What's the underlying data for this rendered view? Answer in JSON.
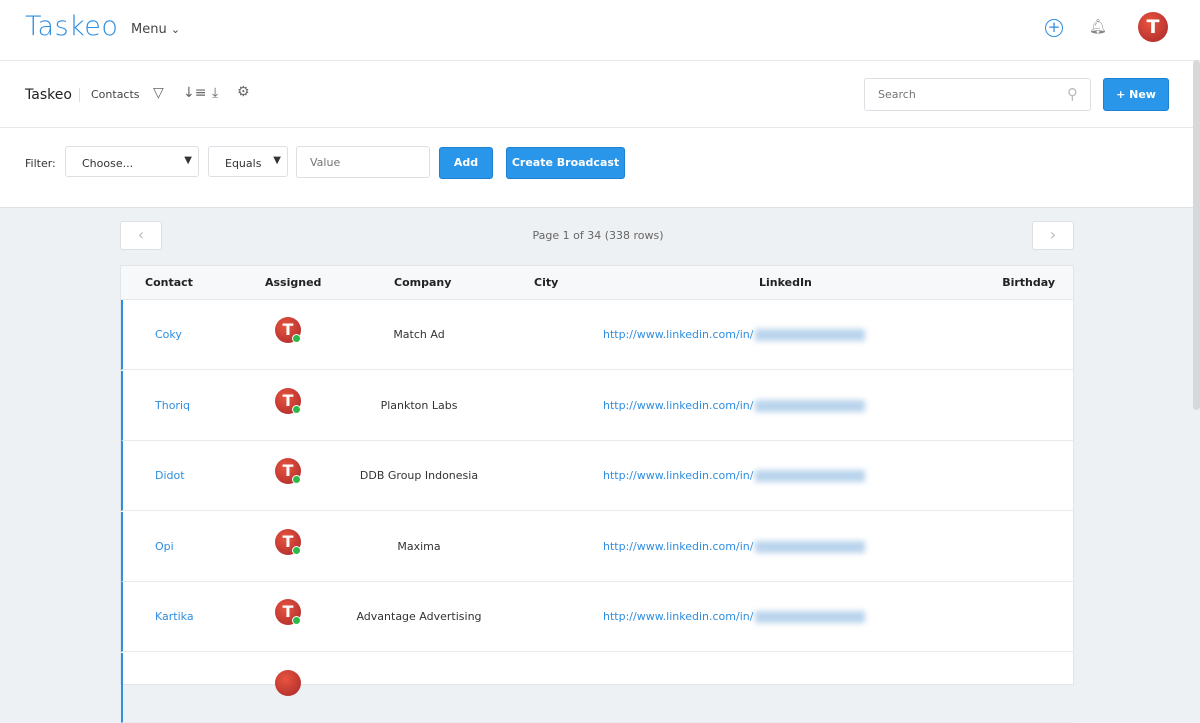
{
  "header": {
    "logo": "Taskeo",
    "menu": "Menu"
  },
  "toolbar": {
    "breadcrumb_root": "Taskeo",
    "breadcrumb_page": "Contacts",
    "search_placeholder": "Search",
    "new_button": "+ New"
  },
  "filter": {
    "label": "Filter:",
    "field": "Choose...",
    "operator": "Equals",
    "value_placeholder": "Value",
    "add": "Add",
    "broadcast": "Create Broadcast"
  },
  "pagination": {
    "text": "Page 1 of 34 (338 rows)"
  },
  "table": {
    "columns": [
      "Contact",
      "Assigned",
      "Company",
      "City",
      "LinkedIn",
      "Birthday"
    ],
    "rows": [
      {
        "contact": "Coky",
        "assigned": "T",
        "company": "Match Ad",
        "city": "",
        "linkedin": "http://www.linkedin.com/in/",
        "birthday": ""
      },
      {
        "contact": "Thoriq",
        "assigned": "T",
        "company": "Plankton Labs",
        "city": "",
        "linkedin": "http://www.linkedin.com/in/",
        "birthday": ""
      },
      {
        "contact": "Didot",
        "assigned": "T",
        "company": "DDB Group Indonesia",
        "city": "",
        "linkedin": "http://www.linkedin.com/in/",
        "birthday": ""
      },
      {
        "contact": "Opi",
        "assigned": "T",
        "company": "Maxima",
        "city": "",
        "linkedin": "http://www.linkedin.com/in/",
        "birthday": ""
      },
      {
        "contact": "Kartika",
        "assigned": "T",
        "company": "Advantage Advertising",
        "city": "",
        "linkedin": "http://www.linkedin.com/in/",
        "birthday": ""
      }
    ]
  },
  "colors": {
    "accent": "#2e8ee0",
    "button": "#2996ea",
    "online": "#2db84a",
    "avatar": "#c9302c"
  }
}
